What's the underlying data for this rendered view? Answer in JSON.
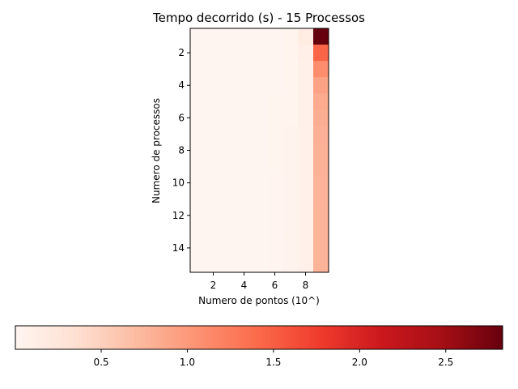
{
  "chart_data": {
    "type": "heatmap",
    "title": "Tempo decorrido (s) - 15 Processos",
    "xlabel": "Numero de pontos (10^)",
    "ylabel": "Numero de processos",
    "x": [
      1,
      2,
      3,
      4,
      5,
      6,
      7,
      8,
      9
    ],
    "y": [
      1,
      2,
      3,
      4,
      5,
      6,
      7,
      8,
      9,
      10,
      11,
      12,
      13,
      14,
      15
    ],
    "xticks": [
      2,
      4,
      6,
      8
    ],
    "yticks": [
      2,
      4,
      6,
      8,
      10,
      12,
      14
    ],
    "xlim": [
      0.5,
      9.5
    ],
    "ylim": [
      15.5,
      0.5
    ],
    "values": [
      [
        0.002,
        0.002,
        0.002,
        0.002,
        0.003,
        0.005,
        0.02,
        0.16,
        2.83
      ],
      [
        0.002,
        0.002,
        0.002,
        0.002,
        0.003,
        0.005,
        0.02,
        0.1,
        1.45
      ],
      [
        0.002,
        0.002,
        0.002,
        0.002,
        0.003,
        0.005,
        0.02,
        0.08,
        1.1
      ],
      [
        0.002,
        0.002,
        0.002,
        0.002,
        0.003,
        0.006,
        0.02,
        0.07,
        0.92
      ],
      [
        0.002,
        0.002,
        0.002,
        0.002,
        0.003,
        0.008,
        0.025,
        0.07,
        0.85
      ],
      [
        0.002,
        0.002,
        0.002,
        0.002,
        0.003,
        0.008,
        0.025,
        0.07,
        0.82
      ],
      [
        0.002,
        0.002,
        0.002,
        0.002,
        0.003,
        0.009,
        0.03,
        0.07,
        0.8
      ],
      [
        0.002,
        0.002,
        0.002,
        0.002,
        0.003,
        0.009,
        0.03,
        0.07,
        0.79
      ],
      [
        0.002,
        0.002,
        0.002,
        0.002,
        0.003,
        0.01,
        0.03,
        0.07,
        0.79
      ],
      [
        0.002,
        0.002,
        0.002,
        0.002,
        0.003,
        0.011,
        0.03,
        0.07,
        0.78
      ],
      [
        0.002,
        0.002,
        0.002,
        0.002,
        0.003,
        0.012,
        0.035,
        0.07,
        0.78
      ],
      [
        0.002,
        0.002,
        0.002,
        0.002,
        0.003,
        0.012,
        0.035,
        0.07,
        0.77
      ],
      [
        0.002,
        0.002,
        0.002,
        0.002,
        0.003,
        0.012,
        0.035,
        0.07,
        0.77
      ],
      [
        0.002,
        0.002,
        0.002,
        0.002,
        0.003,
        0.012,
        0.035,
        0.07,
        0.77
      ],
      [
        0.002,
        0.002,
        0.002,
        0.002,
        0.003,
        0.012,
        0.035,
        0.07,
        0.77
      ]
    ],
    "colormap": "Reds",
    "colormap_stops": [
      "#fff5f0",
      "#fee0d2",
      "#fcbba1",
      "#fc9272",
      "#fb6a4a",
      "#ef3b2c",
      "#cb181d",
      "#a50f15",
      "#67000d"
    ],
    "colorbar": {
      "orientation": "horizontal",
      "vmin": 0.002,
      "vmax": 2.83,
      "ticks": [
        0.5,
        1.0,
        1.5,
        2.0,
        2.5
      ],
      "tick_labels": [
        "0.5",
        "1.0",
        "1.5",
        "2.0",
        "2.5"
      ]
    },
    "grid": false
  }
}
